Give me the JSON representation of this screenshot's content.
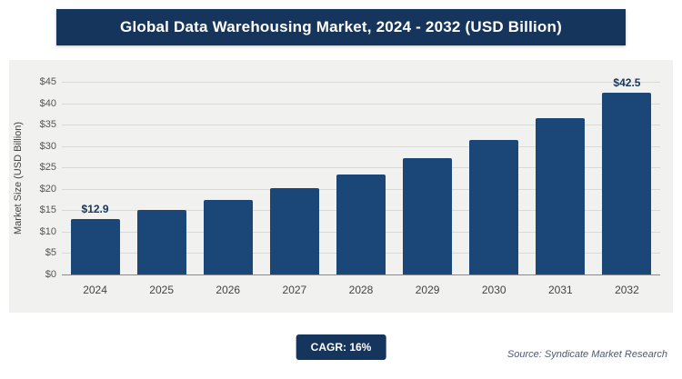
{
  "header": {
    "title": "Global Data Warehousing Market, 2024 - 2032 (USD Billion)"
  },
  "footer": {
    "cagr_label": "CAGR: 16%",
    "source": "Source: Syndicate Market Research"
  },
  "colors": {
    "header_bg": "#16355d",
    "bar": "#1b4778",
    "badge_bg": "#16355d"
  },
  "chart_data": {
    "type": "bar",
    "title": "Global Data Warehousing Market, 2024 - 2032 (USD Billion)",
    "xlabel": "",
    "ylabel": "Market Size (USD Billion)",
    "categories": [
      "2024",
      "2025",
      "2026",
      "2027",
      "2028",
      "2029",
      "2030",
      "2031",
      "2032"
    ],
    "values": [
      12.9,
      15.0,
      17.4,
      20.2,
      23.4,
      27.1,
      31.5,
      36.5,
      42.5
    ],
    "value_labels": [
      "$12.9",
      "",
      "",
      "",
      "",
      "",
      "",
      "",
      "$42.5"
    ],
    "ylim": [
      0,
      45
    ],
    "ytick_step": 5,
    "ytick_labels": [
      "$0",
      "$5",
      "$10",
      "$15",
      "$20",
      "$25",
      "$30",
      "$35",
      "$40",
      "$45"
    ],
    "grid": true,
    "legend": "none",
    "bar_color": "#1b4778"
  }
}
